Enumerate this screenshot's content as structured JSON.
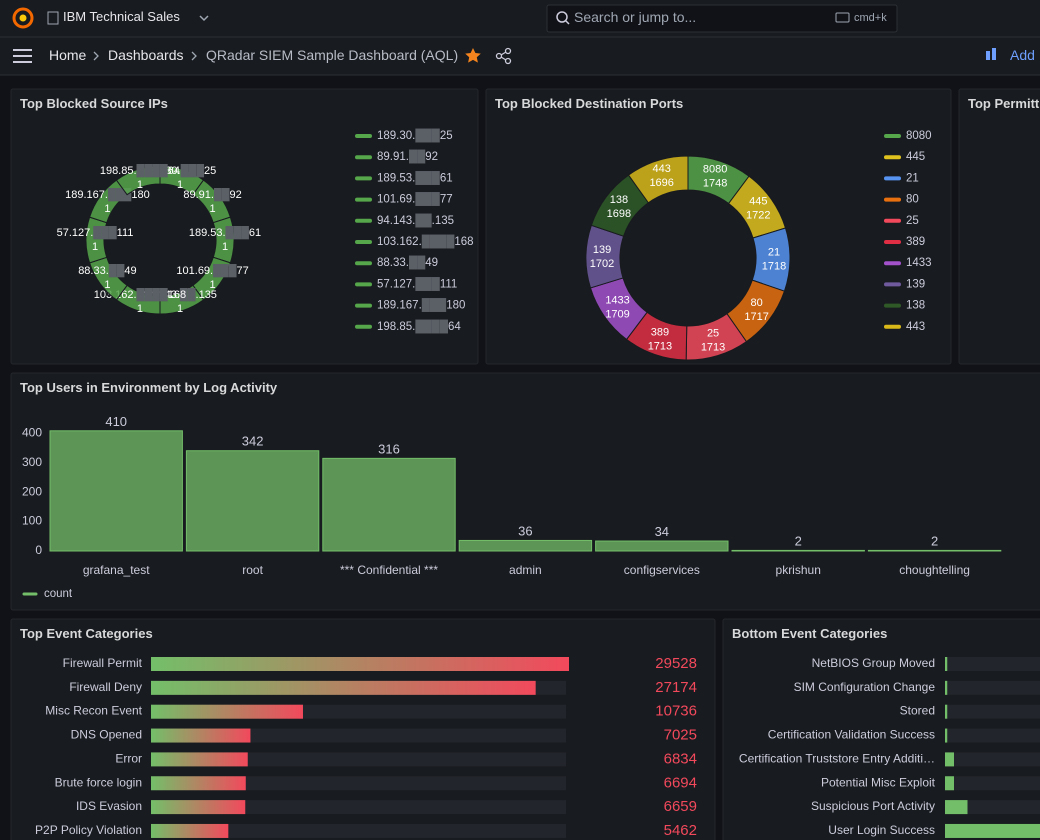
{
  "topbar": {
    "org": "IBM Technical Sales",
    "search": "Search or jump to...",
    "shortcut": "cmd+k"
  },
  "breadcrumb": {
    "items": [
      "Home",
      "Dashboards",
      "QRadar SIEM Sample Dashboard (AQL)"
    ],
    "add": "Add"
  },
  "chart_data": [
    {
      "type": "donut",
      "title": "Top Blocked Source IPs",
      "categories": [
        "189.30.███25",
        "89.91.██92",
        "189.53.███61",
        "101.69.███77",
        "94.143.██.135",
        "103.162.████168",
        "88.33.██49",
        "57.127.███111",
        "189.167.███180",
        "198.85.████64"
      ],
      "values": [
        1,
        1,
        1,
        1,
        1,
        1,
        1,
        1,
        1,
        1
      ],
      "color": "#56a64b",
      "legend": "right"
    },
    {
      "type": "donut",
      "title": "Top Blocked Destination Ports",
      "categories": [
        "8080",
        "445",
        "21",
        "80",
        "25",
        "389",
        "1433",
        "139",
        "138",
        "443"
      ],
      "values": [
        1748,
        1722,
        1718,
        1717,
        1713,
        1713,
        1709,
        1702,
        1698,
        1696
      ],
      "colors": [
        "#56a64b",
        "#e0c21e",
        "#5794f2",
        "#e8700f",
        "#f2495c",
        "#e02f44",
        "#a352cc",
        "#6f5a9e",
        "#2f5a28",
        "#d9b91a"
      ],
      "legend": "right"
    },
    {
      "type": "donut",
      "title": "Top Permitt"
    },
    {
      "type": "bar",
      "title": "Top Users in Environment by Log Activity",
      "categories": [
        "grafana_test",
        "root",
        "*** Confidential ***",
        "admin",
        "configservices",
        "pkrishun",
        "choughtelling"
      ],
      "series": [
        {
          "name": "count",
          "color": "#73bf69",
          "values": [
            410,
            342,
            316,
            36,
            34,
            2,
            2
          ]
        }
      ],
      "ylim": [
        0,
        440
      ],
      "yticks": [
        0,
        100,
        200,
        300,
        400
      ],
      "legend": "bottom-left"
    },
    {
      "type": "bargauge",
      "title": "Top Event Categories",
      "categories": [
        "Firewall Permit",
        "Firewall Deny",
        "Misc Recon Event",
        "DNS Opened",
        "Error",
        "Brute force login",
        "IDS Evasion",
        "P2P Policy Violation"
      ],
      "values": [
        29528,
        27174,
        10736,
        7025,
        6834,
        6694,
        6659,
        5462
      ],
      "xlim": [
        0,
        29528
      ],
      "value_color": "#f2495c"
    },
    {
      "type": "bargauge",
      "title": "Bottom Event Categories",
      "categories": [
        "NetBIOS Group Moved",
        "SIM Configuration Change",
        "Stored",
        "Certification Validation Success",
        "Certification Truststore Entry Additi…",
        "Potential Misc Exploit",
        "Suspicious Port Activity",
        "User Login Success"
      ],
      "values": [
        1,
        1,
        1,
        1,
        4,
        4,
        10,
        60
      ],
      "xlim": [
        0,
        100
      ]
    }
  ]
}
